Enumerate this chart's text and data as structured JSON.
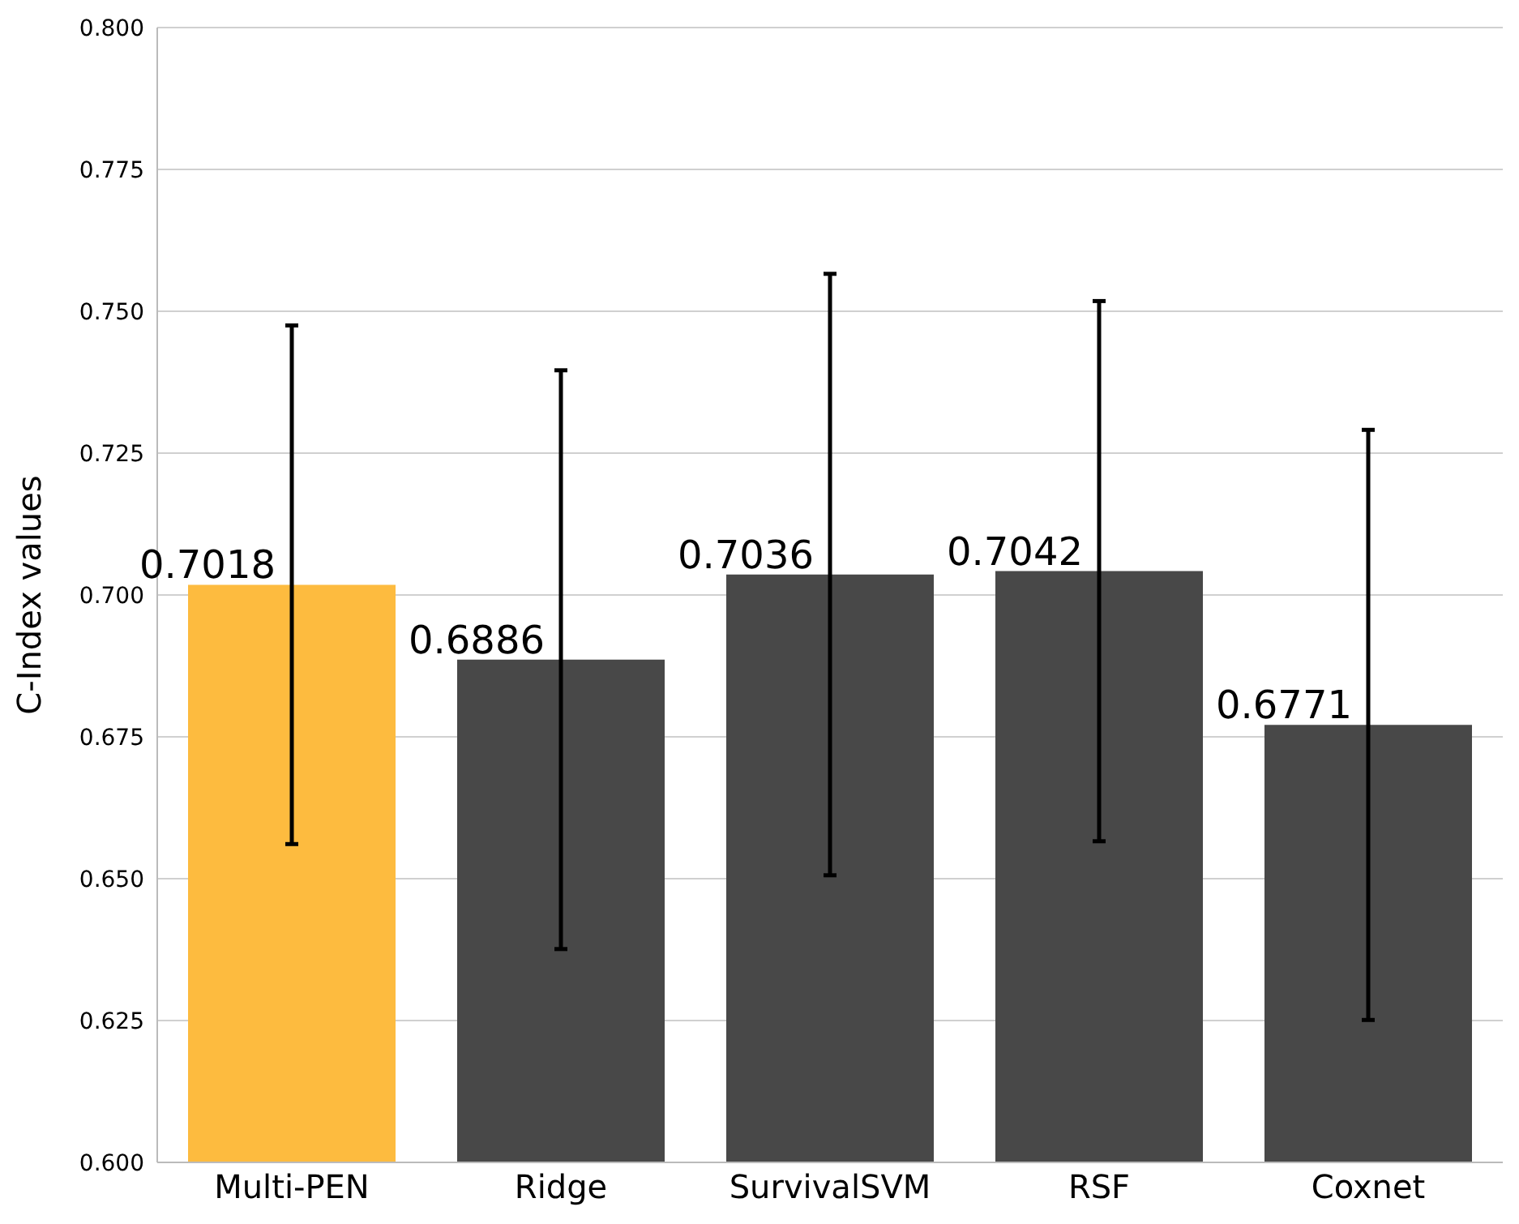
{
  "chart_data": {
    "type": "bar",
    "ylabel": "C-Index values",
    "categories": [
      "Multi-PEN",
      "Ridge",
      "SurvivalSVM",
      "RSF",
      "Coxnet"
    ],
    "values": [
      0.7018,
      0.6886,
      0.7036,
      0.7042,
      0.6771
    ],
    "errors": [
      0.0457,
      0.051,
      0.053,
      0.0476,
      0.052
    ],
    "colors": [
      "#fdbb3f",
      "#484848",
      "#484848",
      "#484848",
      "#484848"
    ],
    "data_labels": true,
    "ylim": [
      0.6,
      0.8
    ],
    "yticks": [
      {
        "value": 0.6,
        "label": "0.600"
      },
      {
        "value": 0.625,
        "label": "0.625"
      },
      {
        "value": 0.65,
        "label": "0.650"
      },
      {
        "value": 0.675,
        "label": "0.675"
      },
      {
        "value": 0.7,
        "label": "0.700"
      },
      {
        "value": 0.725,
        "label": "0.725"
      },
      {
        "value": 0.75,
        "label": "0.750"
      },
      {
        "value": 0.775,
        "label": "0.775"
      },
      {
        "value": 0.8,
        "label": "0.800"
      }
    ],
    "grid": "y"
  }
}
